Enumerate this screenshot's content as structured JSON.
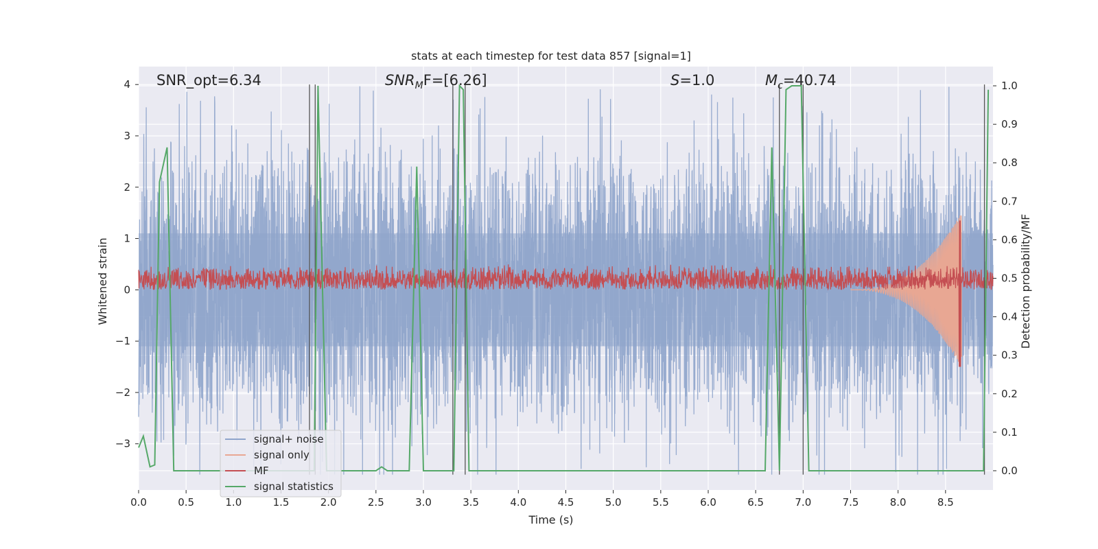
{
  "chart_data": {
    "type": "line",
    "title": "stats at each timestep for test data 857 [signal=1]",
    "xlabel": "Time (s)",
    "ylabel": "Whitened strain",
    "ylabel_right": "Detection probability/MF",
    "xlim": [
      0.0,
      9.0
    ],
    "ylim": [
      -3.9,
      4.35
    ],
    "ylim_right": [
      -0.05,
      1.05
    ],
    "xticks": [
      "0.0",
      "0.5",
      "1.0",
      "1.5",
      "2.0",
      "2.5",
      "3.0",
      "3.5",
      "4.0",
      "4.5",
      "5.0",
      "5.5",
      "6.0",
      "6.5",
      "7.0",
      "7.5",
      "8.0",
      "8.5"
    ],
    "yticks": [
      "4",
      "3",
      "2",
      "1",
      "0",
      "−1",
      "−2",
      "−3"
    ],
    "yticks_right": [
      "1.0",
      "0.9",
      "0.8",
      "0.7",
      "0.6",
      "0.5",
      "0.4",
      "0.3",
      "0.2",
      "0.1",
      "0.0"
    ],
    "grid": true,
    "legend_position": "lower-left",
    "annotations": {
      "snr_opt": "SNR_opt=6.34",
      "snr_mf_main": "SNR",
      "snr_mf_sub": "M",
      "snr_mf_rest": "F=[6.26]",
      "s_main": "S",
      "s_rest": "=1.0",
      "mc_main": "M",
      "mc_sub": "c",
      "mc_rest": "=40.74"
    },
    "series": [
      {
        "name": "signal+ noise",
        "color": "#8ea4cb",
        "style": "noise",
        "envelope_hi": 2.0,
        "envelope_lo": -2.0,
        "peak_max": 4.0,
        "peak_min": -3.6
      },
      {
        "name": "signal only",
        "color": "#e8a793",
        "style": "chirp",
        "x_start": 7.5,
        "x_peak": 8.65,
        "amp_peak": 1.45
      },
      {
        "name": "MF",
        "color": "#c44e52",
        "style": "band",
        "band_lo": 0.0,
        "band_hi": 0.5,
        "spike_x": 8.65,
        "spike_hi": 1.35,
        "spike_lo": -1.5
      },
      {
        "name": "signal statistics",
        "color": "#55a868",
        "axis": "right",
        "x": [
          0.0,
          0.05,
          0.12,
          0.17,
          0.22,
          0.3,
          0.37,
          1.85,
          1.89,
          1.98,
          2.5,
          2.56,
          2.62,
          2.85,
          2.93,
          3.0,
          3.1,
          3.32,
          3.38,
          3.42,
          3.48,
          3.52,
          6.6,
          6.67,
          6.75,
          6.82,
          6.88,
          6.98,
          7.06,
          8.9,
          8.95
        ],
        "y": [
          0.06,
          0.09,
          0.01,
          0.015,
          0.75,
          0.84,
          0.0,
          0.0,
          1.0,
          0.0,
          0.0,
          0.01,
          0.0,
          0.0,
          0.79,
          0.0,
          0.0,
          0.0,
          1.0,
          0.99,
          0.0,
          0.0,
          0.0,
          0.84,
          0.0,
          0.99,
          1.0,
          1.0,
          0.0,
          0.0,
          0.99
        ]
      }
    ],
    "vlines": [
      1.8,
      1.86,
      3.31,
      3.44,
      6.75,
      7.0,
      8.91
    ]
  }
}
